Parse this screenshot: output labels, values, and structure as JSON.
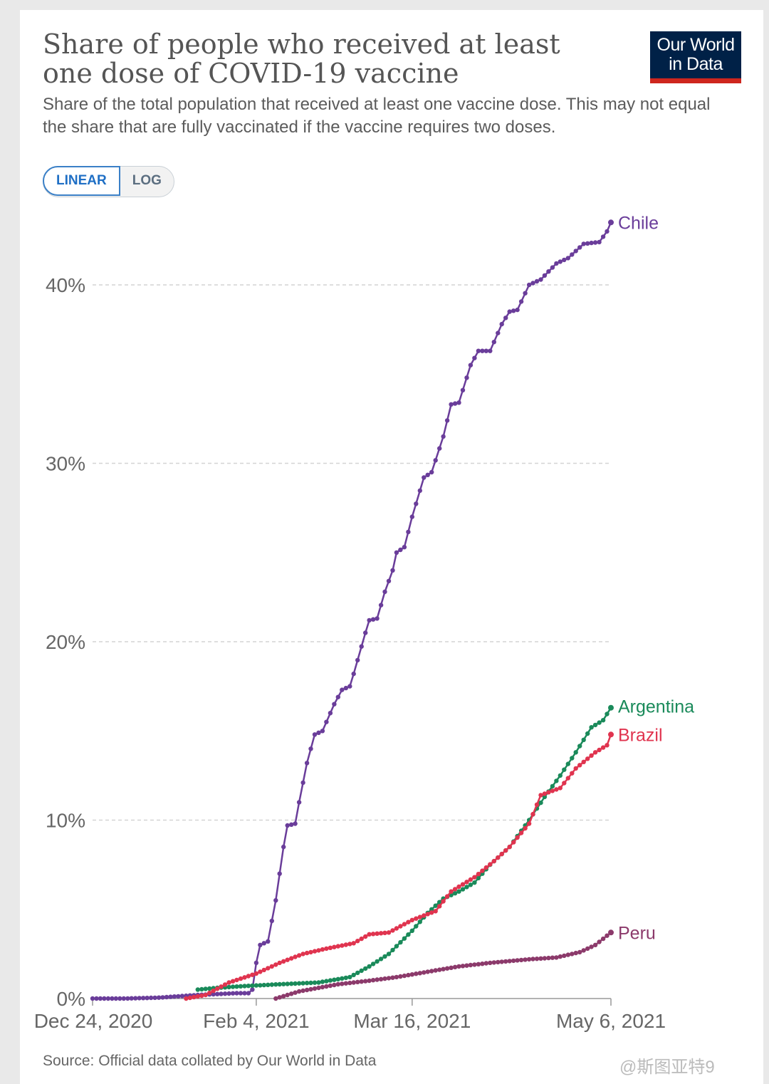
{
  "title": "Share of people who received at least one dose of COVID-19 vaccine",
  "subtitle": "Share of the total population that received at least one vaccine dose. This may not equal the share that are fully vaccinated if the vaccine requires two doses.",
  "logo": {
    "line1": "Our World",
    "line2": "in Data"
  },
  "scale_toggle": {
    "linear": "LINEAR",
    "log": "LOG",
    "selected": "LINEAR"
  },
  "source": "Source: Official data collated by Our World in Data",
  "watermark": "@斯图亚特9",
  "chart_data": {
    "type": "line",
    "x_ticks": [
      "Dec 24, 2020",
      "Feb 4, 2021",
      "Mar 16, 2021",
      "May 6, 2021"
    ],
    "x_range": [
      "2020-12-24",
      "2021-05-06"
    ],
    "y_ticks": [
      "0%",
      "10%",
      "20%",
      "30%",
      "40%"
    ],
    "ylim": [
      0,
      40
    ],
    "grid": "horizontal dashed",
    "colors": {
      "Chile": "#6a3d9a",
      "Argentina": "#1a8a5a",
      "Brazil": "#e0344f",
      "Peru": "#8c3a6b"
    },
    "series": [
      {
        "name": "Chile",
        "points": [
          [
            "2020-12-24",
            0
          ],
          [
            "2021-01-01",
            0
          ],
          [
            "2021-01-10",
            0.05
          ],
          [
            "2021-01-20",
            0.2
          ],
          [
            "2021-01-30",
            0.3
          ],
          [
            "2021-02-02",
            0.3
          ],
          [
            "2021-02-03",
            0.5
          ],
          [
            "2021-02-04",
            2.0
          ],
          [
            "2021-02-05",
            3.0
          ],
          [
            "2021-02-07",
            3.2
          ],
          [
            "2021-02-09",
            5.5
          ],
          [
            "2021-02-11",
            8.5
          ],
          [
            "2021-02-12",
            9.7
          ],
          [
            "2021-02-14",
            9.8
          ],
          [
            "2021-02-15",
            11.0
          ],
          [
            "2021-02-17",
            13.2
          ],
          [
            "2021-02-19",
            14.8
          ],
          [
            "2021-02-21",
            15.0
          ],
          [
            "2021-02-24",
            16.5
          ],
          [
            "2021-02-26",
            17.3
          ],
          [
            "2021-02-28",
            17.5
          ],
          [
            "2021-03-01",
            18.2
          ],
          [
            "2021-03-04",
            20.5
          ],
          [
            "2021-03-05",
            21.2
          ],
          [
            "2021-03-07",
            21.3
          ],
          [
            "2021-03-09",
            22.8
          ],
          [
            "2021-03-11",
            24.0
          ],
          [
            "2021-03-12",
            25.0
          ],
          [
            "2021-03-14",
            25.3
          ],
          [
            "2021-03-16",
            27.0
          ],
          [
            "2021-03-19",
            29.2
          ],
          [
            "2021-03-21",
            29.5
          ],
          [
            "2021-03-24",
            31.5
          ],
          [
            "2021-03-26",
            33.3
          ],
          [
            "2021-03-28",
            33.4
          ],
          [
            "2021-03-31",
            35.5
          ],
          [
            "2021-04-02",
            36.3
          ],
          [
            "2021-04-05",
            36.3
          ],
          [
            "2021-04-08",
            37.8
          ],
          [
            "2021-04-10",
            38.5
          ],
          [
            "2021-04-12",
            38.6
          ],
          [
            "2021-04-15",
            40.0
          ],
          [
            "2021-04-18",
            40.3
          ],
          [
            "2021-04-22",
            41.2
          ],
          [
            "2021-04-25",
            41.5
          ],
          [
            "2021-04-29",
            42.3
          ],
          [
            "2021-05-03",
            42.4
          ],
          [
            "2021-05-05",
            43.0
          ],
          [
            "2021-05-06",
            43.5
          ]
        ]
      },
      {
        "name": "Argentina",
        "points": [
          [
            "2021-01-20",
            0.5
          ],
          [
            "2021-01-25",
            0.6
          ],
          [
            "2021-02-01",
            0.7
          ],
          [
            "2021-02-10",
            0.8
          ],
          [
            "2021-02-20",
            0.9
          ],
          [
            "2021-02-28",
            1.2
          ],
          [
            "2021-03-05",
            1.8
          ],
          [
            "2021-03-10",
            2.5
          ],
          [
            "2021-03-16",
            3.8
          ],
          [
            "2021-03-20",
            4.8
          ],
          [
            "2021-03-24",
            5.6
          ],
          [
            "2021-03-28",
            6.0
          ],
          [
            "2021-04-01",
            6.5
          ],
          [
            "2021-04-05",
            7.5
          ],
          [
            "2021-04-10",
            8.5
          ],
          [
            "2021-04-15",
            10.0
          ],
          [
            "2021-04-19",
            11.3
          ],
          [
            "2021-04-23",
            12.5
          ],
          [
            "2021-04-27",
            13.8
          ],
          [
            "2021-05-01",
            15.2
          ],
          [
            "2021-05-04",
            15.6
          ],
          [
            "2021-05-06",
            16.3
          ]
        ]
      },
      {
        "name": "Brazil",
        "points": [
          [
            "2021-01-17",
            0.0
          ],
          [
            "2021-01-22",
            0.2
          ],
          [
            "2021-01-28",
            0.9
          ],
          [
            "2021-02-04",
            1.4
          ],
          [
            "2021-02-10",
            2.0
          ],
          [
            "2021-02-16",
            2.5
          ],
          [
            "2021-02-22",
            2.8
          ],
          [
            "2021-03-01",
            3.1
          ],
          [
            "2021-03-05",
            3.6
          ],
          [
            "2021-03-10",
            3.7
          ],
          [
            "2021-03-16",
            4.4
          ],
          [
            "2021-03-22",
            4.9
          ],
          [
            "2021-03-26",
            6.0
          ],
          [
            "2021-04-01",
            6.8
          ],
          [
            "2021-04-06",
            7.7
          ],
          [
            "2021-04-10",
            8.5
          ],
          [
            "2021-04-15",
            9.8
          ],
          [
            "2021-04-18",
            11.4
          ],
          [
            "2021-04-23",
            11.8
          ],
          [
            "2021-04-27",
            12.9
          ],
          [
            "2021-05-02",
            13.8
          ],
          [
            "2021-05-05",
            14.2
          ],
          [
            "2021-05-06",
            14.8
          ]
        ]
      },
      {
        "name": "Peru",
        "points": [
          [
            "2021-02-09",
            0.0
          ],
          [
            "2021-02-15",
            0.4
          ],
          [
            "2021-02-25",
            0.8
          ],
          [
            "2021-03-05",
            1.0
          ],
          [
            "2021-03-12",
            1.2
          ],
          [
            "2021-03-20",
            1.5
          ],
          [
            "2021-03-28",
            1.8
          ],
          [
            "2021-04-05",
            2.0
          ],
          [
            "2021-04-15",
            2.2
          ],
          [
            "2021-04-22",
            2.3
          ],
          [
            "2021-04-28",
            2.6
          ],
          [
            "2021-05-02",
            3.0
          ],
          [
            "2021-05-06",
            3.7
          ]
        ]
      }
    ]
  }
}
